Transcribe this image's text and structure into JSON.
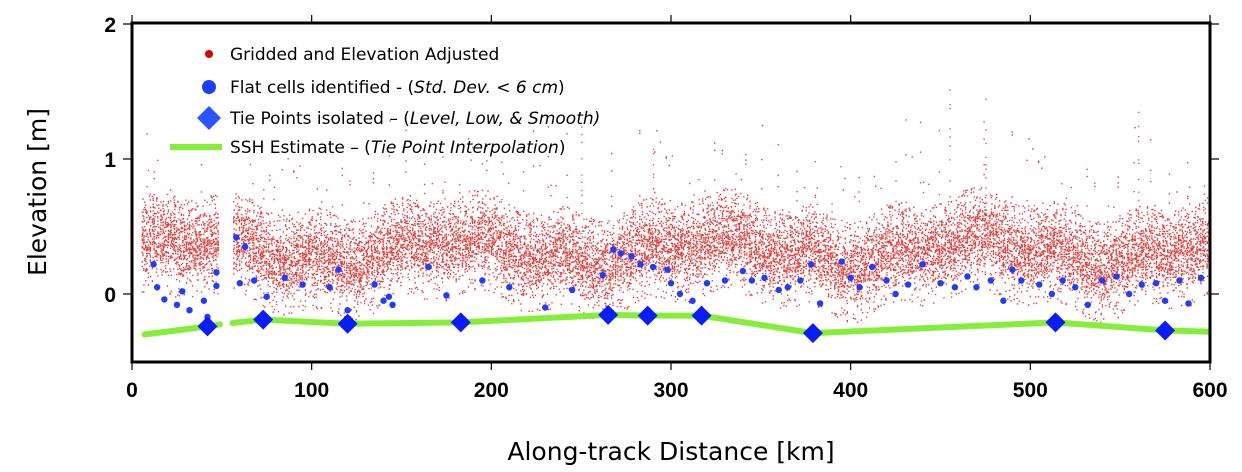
{
  "chart_data": {
    "type": "scatter",
    "title": "",
    "xlabel": "Along-track Distance [km]",
    "ylabel": "Elevation [m]",
    "xlim": [
      0,
      600
    ],
    "ylim": [
      -0.49,
      2
    ],
    "xticks": [
      0,
      100,
      200,
      300,
      400,
      500,
      600
    ],
    "xtick_labels": [
      "0",
      "100",
      "200",
      "300",
      "400",
      "500",
      "600"
    ],
    "yticks": [
      0,
      1,
      2
    ],
    "ytick_labels": [
      "0",
      "1",
      "2"
    ],
    "grid": false,
    "legend_position": "top-left",
    "legend": [
      {
        "marker": "small-dot",
        "color": "#d90000",
        "text": "Gridded and Elevation Adjusted",
        "italic": ""
      },
      {
        "marker": "dot",
        "color": "#1f3dff",
        "text": "Flat cells identified - (",
        "italic": "Std. Dev. < 6 cm",
        "after": ")"
      },
      {
        "marker": "diamond",
        "color": "#2f54ff",
        "text": "Tie Points isolated – (",
        "italic": "Level, Low, & Smooth)",
        "after": ""
      },
      {
        "marker": "line",
        "color": "#86ee3a",
        "text": "SSH Estimate – (",
        "italic": "Tie Point Interpolation",
        "after": ")"
      }
    ],
    "series": [
      {
        "name": "Gridded and Elevation Adjusted",
        "color": "#d90000",
        "description": "dense cloud of points; typical elevation ~0.3 m with spread roughly -0.2 to 1.0 m, isolated spikes to ~1.5-1.8 m",
        "x_range": [
          5,
          600
        ],
        "data_gap_km": [
          48,
          56
        ],
        "typical_center_m": 0.32,
        "typical_spread_m": 0.12,
        "max_spike_m": 1.8,
        "spikes": [
          [
            455,
            1.8
          ],
          [
            560,
            1.5
          ],
          [
            475,
            1.45
          ],
          [
            250,
            1.3
          ],
          [
            290,
            1.15
          ]
        ]
      },
      {
        "name": "Flat cells identified",
        "color": "#1f3dff",
        "points": [
          [
            12,
            0.22
          ],
          [
            14,
            0.05
          ],
          [
            18,
            -0.04
          ],
          [
            25,
            -0.08
          ],
          [
            28,
            0.02
          ],
          [
            32,
            -0.12
          ],
          [
            40,
            -0.05
          ],
          [
            42,
            -0.17
          ],
          [
            47,
            0.16
          ],
          [
            47,
            0.06
          ],
          [
            58,
            0.42
          ],
          [
            60,
            0.08
          ],
          [
            63,
            0.35
          ],
          [
            68,
            0.1
          ],
          [
            75,
            -0.02
          ],
          [
            85,
            0.12
          ],
          [
            95,
            0.07
          ],
          [
            110,
            0.05
          ],
          [
            115,
            0.18
          ],
          [
            120,
            -0.12
          ],
          [
            135,
            0.07
          ],
          [
            140,
            -0.05
          ],
          [
            143,
            -0.02
          ],
          [
            145,
            -0.08
          ],
          [
            165,
            0.2
          ],
          [
            175,
            -0.01
          ],
          [
            195,
            0.1
          ],
          [
            210,
            0.05
          ],
          [
            230,
            -0.1
          ],
          [
            245,
            0.03
          ],
          [
            262,
            0.14
          ],
          [
            268,
            0.33
          ],
          [
            272,
            0.3
          ],
          [
            278,
            0.28
          ],
          [
            283,
            0.22
          ],
          [
            290,
            0.2
          ],
          [
            298,
            0.18
          ],
          [
            300,
            0.08
          ],
          [
            305,
            0.0
          ],
          [
            312,
            -0.05
          ],
          [
            320,
            0.08
          ],
          [
            330,
            0.1
          ],
          [
            340,
            0.17
          ],
          [
            345,
            0.1
          ],
          [
            352,
            0.12
          ],
          [
            360,
            0.03
          ],
          [
            365,
            0.05
          ],
          [
            372,
            0.1
          ],
          [
            378,
            0.22
          ],
          [
            383,
            -0.07
          ],
          [
            395,
            0.24
          ],
          [
            400,
            0.12
          ],
          [
            405,
            0.05
          ],
          [
            412,
            0.2
          ],
          [
            420,
            0.1
          ],
          [
            425,
            0.0
          ],
          [
            432,
            0.07
          ],
          [
            440,
            0.22
          ],
          [
            450,
            0.08
          ],
          [
            458,
            0.05
          ],
          [
            465,
            0.13
          ],
          [
            470,
            0.05
          ],
          [
            478,
            0.1
          ],
          [
            485,
            -0.05
          ],
          [
            490,
            0.18
          ],
          [
            495,
            0.1
          ],
          [
            505,
            0.07
          ],
          [
            512,
            0.0
          ],
          [
            518,
            0.1
          ],
          [
            525,
            0.05
          ],
          [
            532,
            -0.08
          ],
          [
            540,
            0.1
          ],
          [
            548,
            0.13
          ],
          [
            555,
            0.0
          ],
          [
            562,
            0.07
          ],
          [
            570,
            0.08
          ],
          [
            575,
            -0.05
          ],
          [
            583,
            0.1
          ],
          [
            588,
            -0.07
          ],
          [
            595,
            0.12
          ]
        ]
      },
      {
        "name": "Tie Points isolated",
        "color": "#2f54ff",
        "points": [
          [
            42,
            -0.24
          ],
          [
            73,
            -0.19
          ],
          [
            120,
            -0.22
          ],
          [
            183,
            -0.21
          ],
          [
            265,
            -0.155
          ],
          [
            287,
            -0.16
          ],
          [
            317,
            -0.16
          ],
          [
            379,
            -0.29
          ],
          [
            514,
            -0.21
          ],
          [
            575,
            -0.27
          ]
        ]
      },
      {
        "name": "SSH Estimate",
        "color": "#86ee3a",
        "segments": [
          [
            [
              7,
              -0.3
            ],
            [
              42,
              -0.24
            ],
            [
              49,
              -0.225
            ]
          ],
          [
            [
              56,
              -0.215
            ],
            [
              73,
              -0.19
            ],
            [
              120,
              -0.22
            ],
            [
              183,
              -0.21
            ],
            [
              265,
              -0.155
            ],
            [
              287,
              -0.16
            ],
            [
              317,
              -0.16
            ],
            [
              379,
              -0.29
            ],
            [
              514,
              -0.21
            ],
            [
              575,
              -0.27
            ],
            [
              600,
              -0.28
            ]
          ]
        ]
      }
    ]
  }
}
